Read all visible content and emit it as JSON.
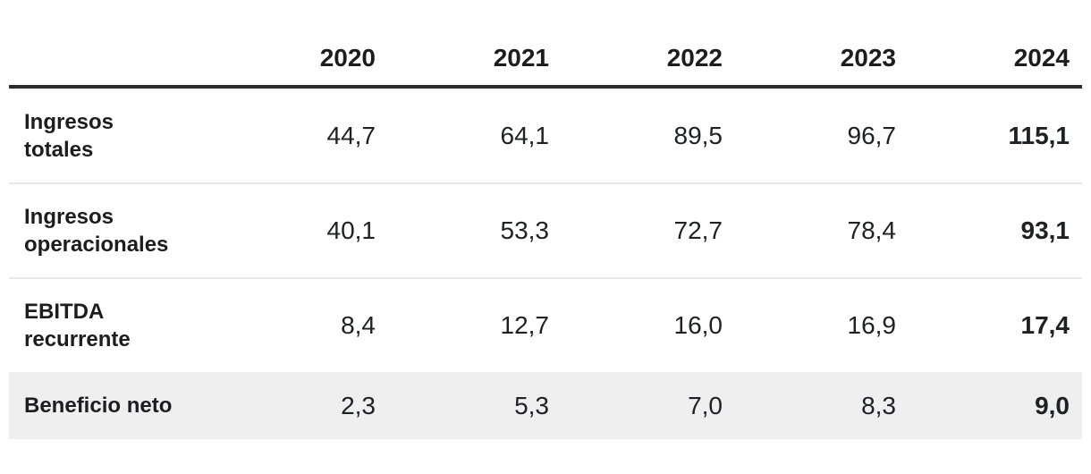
{
  "table": {
    "column_headers": [
      "2020",
      "2021",
      "2022",
      "2023",
      "2024"
    ],
    "rows": [
      {
        "label_line1": "Ingresos",
        "label_line2": "totales",
        "values": [
          "44,7",
          "64,1",
          "89,5",
          "96,7",
          "115,1"
        ],
        "highlighted": false
      },
      {
        "label_line1": "Ingresos",
        "label_line2": "operacionales",
        "values": [
          "40,1",
          "53,3",
          "72,7",
          "78,4",
          "93,1"
        ],
        "highlighted": false
      },
      {
        "label_line1": "EBITDA",
        "label_line2": "recurrente",
        "values": [
          "8,4",
          "12,7",
          "16,0",
          "16,9",
          "17,4"
        ],
        "highlighted": false
      },
      {
        "label_line1": "Beneficio neto",
        "values": [
          "2,3",
          "5,3",
          "7,0",
          "8,3",
          "9,0"
        ],
        "highlighted": true
      }
    ]
  },
  "colors": {
    "header_rule": "#2b2b2b",
    "row_divider": "#e8e8e8",
    "highlight_row_bg": "#efefef",
    "text": "#1d1d1f",
    "background": "#ffffff"
  },
  "chart_data": {
    "type": "table",
    "title": "",
    "categories": [
      "2020",
      "2021",
      "2022",
      "2023",
      "2024"
    ],
    "series": [
      {
        "name": "Ingresos totales",
        "values": [
          44.7,
          64.1,
          89.5,
          96.7,
          115.1
        ]
      },
      {
        "name": "Ingresos operacionales",
        "values": [
          40.1,
          53.3,
          72.7,
          78.4,
          93.1
        ]
      },
      {
        "name": "EBITDA recurrente",
        "values": [
          8.4,
          12.7,
          16.0,
          16.9,
          17.4
        ]
      },
      {
        "name": "Beneficio neto",
        "values": [
          2.3,
          5.3,
          7.0,
          8.3,
          9.0
        ]
      }
    ],
    "layout_hints": {
      "decimal_separator": ",",
      "last_column_bold": true,
      "highlighted_row": "Beneficio neto",
      "grid": "horizontal-dividers"
    }
  }
}
